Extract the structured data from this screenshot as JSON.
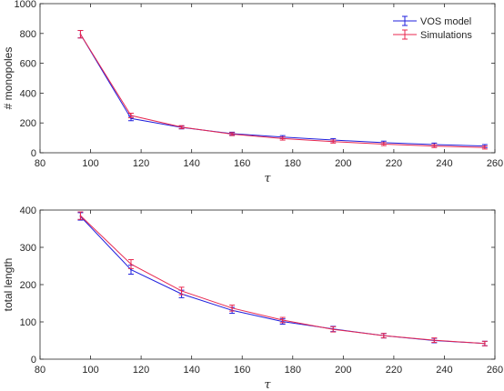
{
  "chart_data": [
    {
      "type": "line",
      "xlabel": "τ",
      "ylabel": "# monopoles",
      "xlim": [
        80,
        260
      ],
      "ylim": [
        0,
        1000
      ],
      "xticks": [
        80,
        100,
        120,
        140,
        160,
        180,
        200,
        220,
        240,
        260
      ],
      "yticks": [
        0,
        200,
        400,
        600,
        800,
        1000
      ],
      "x": [
        96,
        116,
        136,
        156,
        176,
        196,
        216,
        236,
        256
      ],
      "legend_position": "top-right",
      "series": [
        {
          "name": "VOS model",
          "color": "#1f1fdd",
          "values": [
            795,
            230,
            170,
            128,
            105,
            85,
            68,
            55,
            45
          ],
          "errors": [
            25,
            15,
            10,
            10,
            10,
            10,
            10,
            10,
            10
          ]
        },
        {
          "name": "Simulations",
          "color": "#e8274f",
          "values": [
            795,
            250,
            172,
            125,
            95,
            75,
            58,
            45,
            35
          ],
          "errors": [
            25,
            15,
            10,
            10,
            10,
            10,
            10,
            10,
            10
          ]
        }
      ]
    },
    {
      "type": "line",
      "xlabel": "τ",
      "ylabel": "total length",
      "xlim": [
        80,
        260
      ],
      "ylim": [
        0,
        400
      ],
      "xticks": [
        80,
        100,
        120,
        140,
        160,
        180,
        200,
        220,
        240,
        260
      ],
      "yticks": [
        0,
        100,
        200,
        300,
        400
      ],
      "x": [
        96,
        116,
        136,
        156,
        176,
        196,
        216,
        236,
        256
      ],
      "series": [
        {
          "name": "VOS model",
          "color": "#1f1fdd",
          "values": [
            383,
            240,
            175,
            131,
            101,
            81,
            63,
            50,
            42
          ],
          "errors": [
            10,
            12,
            10,
            8,
            7,
            7,
            6,
            6,
            6
          ]
        },
        {
          "name": "Simulations",
          "color": "#e8274f",
          "values": [
            385,
            255,
            183,
            137,
            105,
            80,
            63,
            51,
            42
          ],
          "errors": [
            10,
            12,
            10,
            8,
            7,
            7,
            6,
            6,
            6
          ]
        }
      ]
    }
  ]
}
